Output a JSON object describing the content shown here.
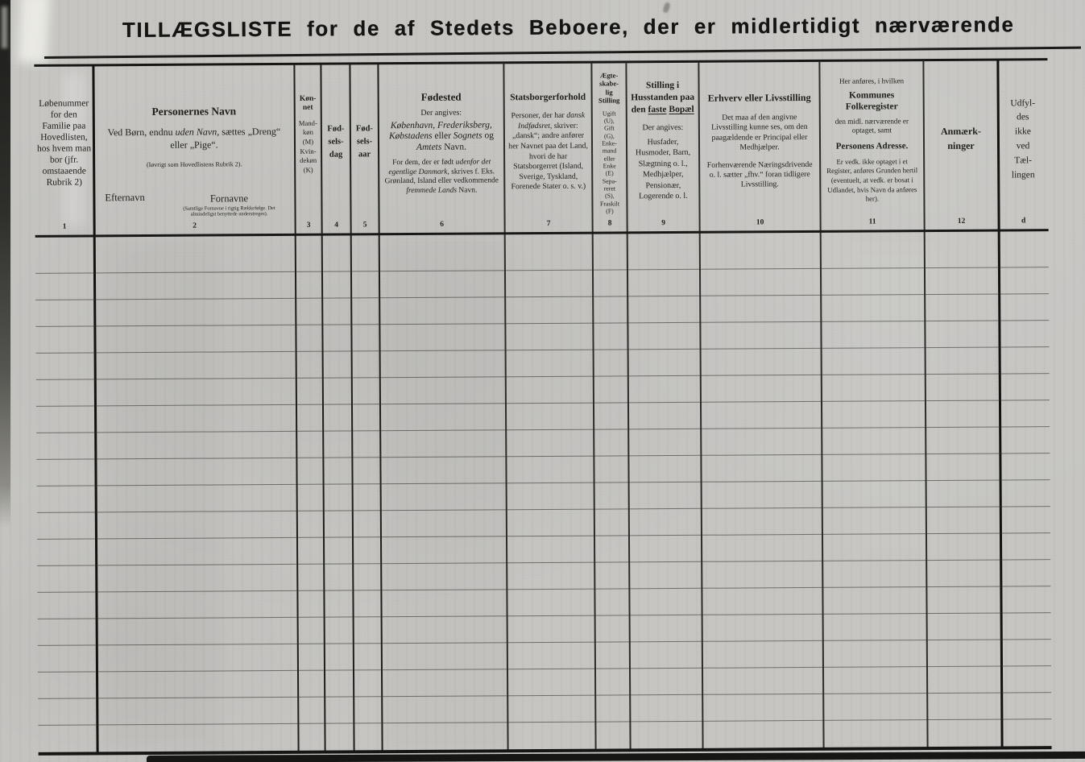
{
  "page": {
    "title": "TILLÆGSLISTE for de af Stedets Beboere, der er midlertidigt nærværende"
  },
  "colors": {
    "paper": "#c6c5c2",
    "ink": "#1b1b18",
    "rule_thick": "#161614",
    "rule_thin": "#4c4c46"
  },
  "table": {
    "row_count": 19,
    "columns": {
      "c1": {
        "number": "1",
        "text": "Løbenummer for den Familie paa Hovedlisten, hos hvem man bor (jfr. omstaaende Rubrik 2)"
      },
      "c2": {
        "number": "2",
        "title": "Personernes Navn",
        "body": [
          {
            "t": "Ved Børn, endnu "
          },
          {
            "t": "uden Navn",
            "i": true
          },
          {
            "t": ", sættes „Dreng“ eller „Pige“."
          }
        ],
        "note": "(Iøvrigt som Hovedlistens Rubrik 2).",
        "efternavn": "Efternavn",
        "fornavne": "Fornavne",
        "fornavne_note": "(Samtlige Fornavne i rigtig Rækkefølge. Det almindeligst benyttede understreges)."
      },
      "c3": {
        "number": "3",
        "title_lines": [
          "Køn-",
          "net"
        ],
        "body_lines": [
          "Mand-",
          "køn",
          "(M)",
          "Kvin-",
          "dekøn",
          "(K)"
        ]
      },
      "c4": {
        "number": "4",
        "title_lines": [
          "Fød-",
          "sels-",
          "dag"
        ]
      },
      "c5": {
        "number": "5",
        "title_lines": [
          "Fød-",
          "sels-",
          "aar"
        ]
      },
      "c6": {
        "number": "6",
        "title": "Fødested",
        "sub": "Der angives:",
        "body1": [
          {
            "t": "København, Frederiksberg, Købstadens",
            "i": true
          },
          {
            "t": " eller "
          },
          {
            "t": "Sognets",
            "i": true
          },
          {
            "t": " og "
          },
          {
            "t": "Amtets",
            "i": true
          },
          {
            "t": " Navn."
          }
        ],
        "body2": [
          {
            "t": "For dem, der er født "
          },
          {
            "t": "udenfor det egentlige Danmark",
            "i": true
          },
          {
            "t": ", skrives f. Eks. Grønland, Island eller vedkommende "
          },
          {
            "t": "fremmede Lands",
            "i": true
          },
          {
            "t": " Navn."
          }
        ]
      },
      "c7": {
        "number": "7",
        "title": "Statsborgerforhold",
        "body": [
          {
            "t": "Personer, der har "
          },
          {
            "t": "dansk Indfødsret",
            "i": true
          },
          {
            "t": ", skriver: „dansk“; andre anfører her Navnet paa det Land, hvori de har Statsborgerret (Island, Sverige, Tyskland, Forenede Stater o. s. v.)"
          }
        ]
      },
      "c8": {
        "number": "8",
        "title_lines": [
          "Ægte-",
          "skabe-",
          "lig",
          "Stilling"
        ],
        "body_lines": [
          "Ugift",
          "(U),",
          "Gift",
          "(G),",
          "Enke-",
          "mand",
          "eller",
          "Enke",
          "(E)",
          "Sepa-",
          "reret",
          "(S),",
          "Fraskilt",
          "(F)"
        ]
      },
      "c9": {
        "number": "9",
        "title": [
          {
            "t": "Stilling i Husstanden paa den "
          },
          {
            "t": "faste",
            "u": true
          },
          {
            "t": " "
          },
          {
            "t": "Bopæl",
            "u": true
          }
        ],
        "sub": "Der angives:",
        "body": "Husfader, Husmoder, Barn, Slægtning o. l., Medhjælper, Pensionær, Logerende o. l."
      },
      "c10": {
        "number": "10",
        "title": "Erhverv eller Livsstilling",
        "body1": "Det maa af den angivne Livsstilling kunne ses, om den paagældende er Principal eller Medhjælper.",
        "body2": "Forhenværende Næringsdrivende o. l. sætter „fhv.“ foran tidligere Livsstilling."
      },
      "c11": {
        "number": "11",
        "pre": "Her anføres, i hvilken",
        "title": "Kommunes Folkeregister",
        "mid": "den midl. nærværende er optaget, samt",
        "title2": "Personens Adresse.",
        "body": "Er vedk. ikke optaget i et Register, anføres Grunden hertil (eventuelt, at vedk. er bosat i Udlandet, hvis Navn da anføres her)."
      },
      "c12": {
        "number": "12",
        "title_lines": [
          "Anmærk-",
          "ninger"
        ]
      },
      "c13": {
        "number": "d",
        "lines": [
          "Udfyl-",
          "des",
          "ikke",
          "ved",
          "Tæl-",
          "lingen"
        ]
      }
    }
  }
}
